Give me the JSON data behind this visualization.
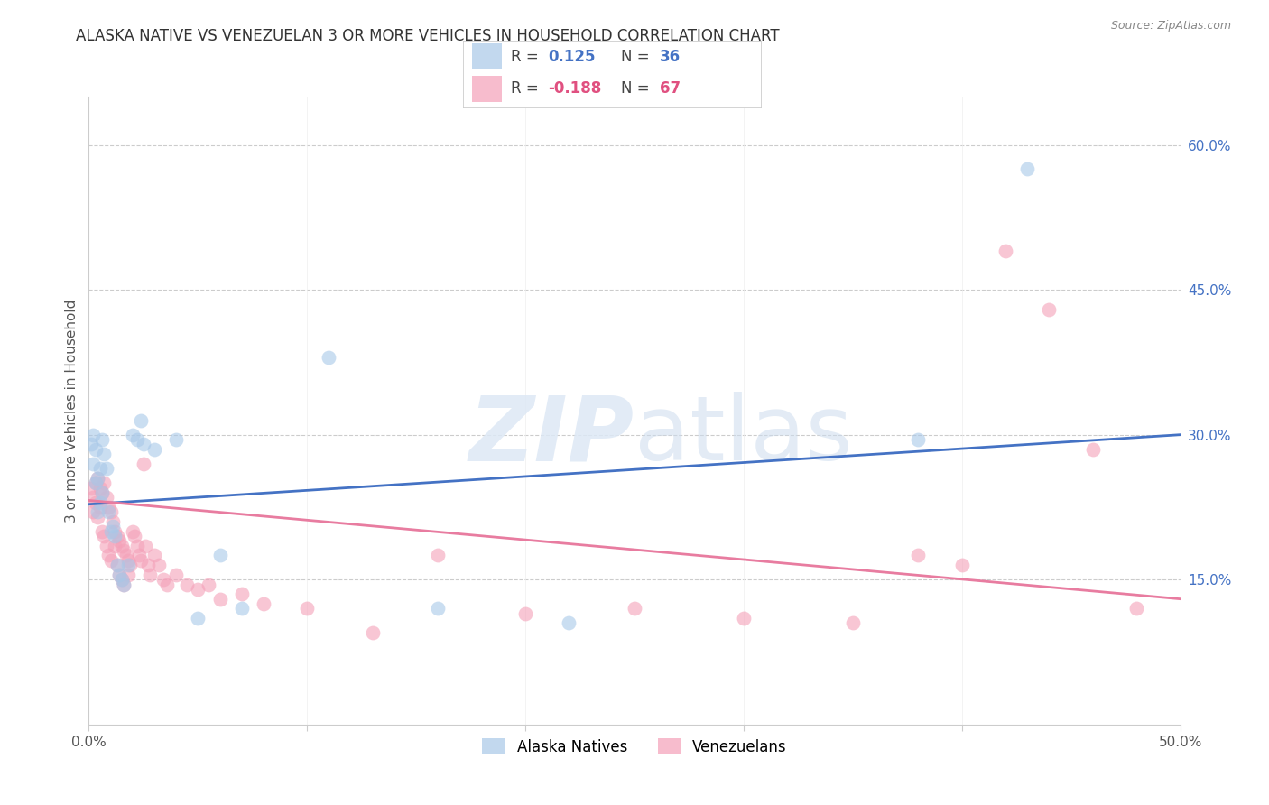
{
  "title": "ALASKA NATIVE VS VENEZUELAN 3 OR MORE VEHICLES IN HOUSEHOLD CORRELATION CHART",
  "source": "Source: ZipAtlas.com",
  "ylabel": "3 or more Vehicles in Household",
  "xlim": [
    0.0,
    0.5
  ],
  "ylim": [
    0.0,
    0.65
  ],
  "xtick_positions": [
    0.0,
    0.1,
    0.2,
    0.3,
    0.4,
    0.5
  ],
  "xticklabels": [
    "0.0%",
    "",
    "",
    "",
    "",
    "50.0%"
  ],
  "yticks_right": [
    0.15,
    0.3,
    0.45,
    0.6
  ],
  "ytick_right_labels": [
    "15.0%",
    "30.0%",
    "45.0%",
    "60.0%"
  ],
  "alaska_color": "#a8c8e8",
  "venezuelan_color": "#f4a0b8",
  "alaska_line_color": "#4472c4",
  "venezuelan_line_color": "#e87ca0",
  "alaska_R": 0.125,
  "alaska_N": 36,
  "venezuelan_R": -0.188,
  "venezuelan_N": 67,
  "alaska_legend_color": "#4472c4",
  "venezuelan_legend_R_color": "#e05080",
  "alaska_points": [
    [
      0.001,
      0.29
    ],
    [
      0.002,
      0.3
    ],
    [
      0.002,
      0.27
    ],
    [
      0.003,
      0.285
    ],
    [
      0.003,
      0.25
    ],
    [
      0.004,
      0.255
    ],
    [
      0.004,
      0.22
    ],
    [
      0.005,
      0.265
    ],
    [
      0.005,
      0.23
    ],
    [
      0.006,
      0.295
    ],
    [
      0.006,
      0.24
    ],
    [
      0.007,
      0.28
    ],
    [
      0.008,
      0.265
    ],
    [
      0.009,
      0.22
    ],
    [
      0.01,
      0.2
    ],
    [
      0.011,
      0.205
    ],
    [
      0.012,
      0.195
    ],
    [
      0.013,
      0.165
    ],
    [
      0.014,
      0.155
    ],
    [
      0.015,
      0.15
    ],
    [
      0.016,
      0.145
    ],
    [
      0.018,
      0.165
    ],
    [
      0.02,
      0.3
    ],
    [
      0.022,
      0.295
    ],
    [
      0.024,
      0.315
    ],
    [
      0.025,
      0.29
    ],
    [
      0.03,
      0.285
    ],
    [
      0.04,
      0.295
    ],
    [
      0.05,
      0.11
    ],
    [
      0.06,
      0.175
    ],
    [
      0.07,
      0.12
    ],
    [
      0.11,
      0.38
    ],
    [
      0.16,
      0.12
    ],
    [
      0.22,
      0.105
    ],
    [
      0.38,
      0.295
    ],
    [
      0.43,
      0.575
    ]
  ],
  "venezuelan_points": [
    [
      0.001,
      0.245
    ],
    [
      0.002,
      0.235
    ],
    [
      0.002,
      0.22
    ],
    [
      0.003,
      0.25
    ],
    [
      0.003,
      0.23
    ],
    [
      0.004,
      0.255
    ],
    [
      0.004,
      0.215
    ],
    [
      0.005,
      0.245
    ],
    [
      0.005,
      0.225
    ],
    [
      0.006,
      0.24
    ],
    [
      0.006,
      0.2
    ],
    [
      0.007,
      0.25
    ],
    [
      0.007,
      0.195
    ],
    [
      0.008,
      0.235
    ],
    [
      0.008,
      0.185
    ],
    [
      0.009,
      0.225
    ],
    [
      0.009,
      0.175
    ],
    [
      0.01,
      0.22
    ],
    [
      0.01,
      0.17
    ],
    [
      0.011,
      0.21
    ],
    [
      0.012,
      0.2
    ],
    [
      0.012,
      0.185
    ],
    [
      0.013,
      0.195
    ],
    [
      0.013,
      0.165
    ],
    [
      0.014,
      0.19
    ],
    [
      0.014,
      0.155
    ],
    [
      0.015,
      0.185
    ],
    [
      0.015,
      0.15
    ],
    [
      0.016,
      0.18
    ],
    [
      0.016,
      0.145
    ],
    [
      0.017,
      0.175
    ],
    [
      0.018,
      0.17
    ],
    [
      0.018,
      0.155
    ],
    [
      0.019,
      0.165
    ],
    [
      0.02,
      0.2
    ],
    [
      0.021,
      0.195
    ],
    [
      0.022,
      0.185
    ],
    [
      0.023,
      0.175
    ],
    [
      0.024,
      0.17
    ],
    [
      0.025,
      0.27
    ],
    [
      0.026,
      0.185
    ],
    [
      0.027,
      0.165
    ],
    [
      0.028,
      0.155
    ],
    [
      0.03,
      0.175
    ],
    [
      0.032,
      0.165
    ],
    [
      0.034,
      0.15
    ],
    [
      0.036,
      0.145
    ],
    [
      0.04,
      0.155
    ],
    [
      0.045,
      0.145
    ],
    [
      0.05,
      0.14
    ],
    [
      0.055,
      0.145
    ],
    [
      0.06,
      0.13
    ],
    [
      0.07,
      0.135
    ],
    [
      0.08,
      0.125
    ],
    [
      0.1,
      0.12
    ],
    [
      0.13,
      0.095
    ],
    [
      0.16,
      0.175
    ],
    [
      0.2,
      0.115
    ],
    [
      0.25,
      0.12
    ],
    [
      0.3,
      0.11
    ],
    [
      0.35,
      0.105
    ],
    [
      0.38,
      0.175
    ],
    [
      0.4,
      0.165
    ],
    [
      0.42,
      0.49
    ],
    [
      0.44,
      0.43
    ],
    [
      0.46,
      0.285
    ],
    [
      0.48,
      0.12
    ]
  ],
  "alaska_line_x0": 0.0,
  "alaska_line_y0": 0.228,
  "alaska_line_x1": 0.5,
  "alaska_line_y1": 0.3,
  "venezuelan_line_x0": 0.0,
  "venezuelan_line_y0": 0.232,
  "venezuelan_line_x1": 0.5,
  "venezuelan_line_y1": 0.13
}
